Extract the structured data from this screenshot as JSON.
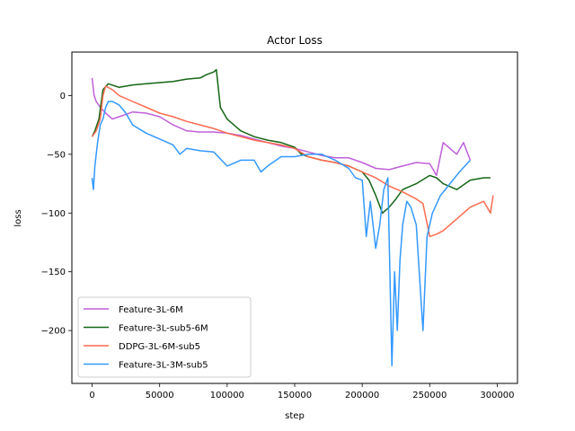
{
  "chart_data": {
    "type": "line",
    "title": "Actor Loss",
    "xlabel": "step",
    "ylabel": "loss",
    "xlim": [
      -15000,
      315000
    ],
    "ylim": [
      -245,
      37
    ],
    "xticks": [
      0,
      50000,
      100000,
      150000,
      200000,
      250000,
      300000
    ],
    "xtick_labels": [
      "0",
      "50000",
      "100000",
      "150000",
      "200000",
      "250000",
      "300000"
    ],
    "yticks": [
      0,
      -50,
      -100,
      -150,
      -200
    ],
    "ytick_labels": [
      "0",
      "−50",
      "−100",
      "−150",
      "−200"
    ],
    "grid": false,
    "legend_position": "lower-left",
    "series": [
      {
        "name": "Feature-3L-6M",
        "color": "#bf5fd9",
        "x": [
          0,
          1500,
          3000,
          6000,
          10000,
          15000,
          20000,
          25000,
          30000,
          40000,
          50000,
          60000,
          70000,
          80000,
          90000,
          100000,
          110000,
          120000,
          130000,
          140000,
          150000,
          160000,
          170000,
          180000,
          190000,
          200000,
          210000,
          220000,
          230000,
          240000,
          250000,
          255000,
          260000,
          265000,
          270000,
          275000,
          280000
        ],
        "y": [
          15,
          0,
          -5,
          -10,
          -15,
          -20,
          -18,
          -16,
          -14,
          -15,
          -18,
          -25,
          -30,
          -31,
          -31,
          -32,
          -34,
          -37,
          -40,
          -43,
          -45,
          -48,
          -51,
          -53,
          -53,
          -57,
          -62,
          -63,
          -60,
          -57,
          -58,
          -68,
          -40,
          -45,
          -50,
          -40,
          -55
        ]
      },
      {
        "name": "Feature-3L-sub5-6M",
        "color": "#146614",
        "x": [
          0,
          2000,
          5000,
          8000,
          12000,
          20000,
          30000,
          40000,
          50000,
          60000,
          70000,
          80000,
          85000,
          90000,
          92000,
          95000,
          100000,
          110000,
          120000,
          130000,
          140000,
          150000,
          155000,
          160000,
          170000,
          180000,
          190000,
          200000,
          205000,
          210000,
          215000,
          220000,
          225000,
          230000,
          240000,
          250000,
          255000,
          260000,
          270000,
          280000,
          290000,
          295000
        ],
        "y": [
          -35,
          -30,
          -20,
          5,
          10,
          7,
          9,
          10,
          11,
          12,
          14,
          15,
          18,
          20,
          22,
          -10,
          -20,
          -30,
          -35,
          -38,
          -40,
          -44,
          -50,
          -52,
          -55,
          -57,
          -60,
          -65,
          -72,
          -85,
          -100,
          -95,
          -88,
          -80,
          -75,
          -68,
          -70,
          -75,
          -80,
          -72,
          -70,
          -70
        ]
      },
      {
        "name": "DDPG-3L-6M-sub5",
        "color": "#ff6b50",
        "x": [
          0,
          3000,
          6000,
          8000,
          10000,
          15000,
          20000,
          30000,
          40000,
          50000,
          60000,
          70000,
          80000,
          90000,
          100000,
          110000,
          120000,
          130000,
          140000,
          150000,
          160000,
          170000,
          180000,
          190000,
          200000,
          210000,
          220000,
          230000,
          240000,
          245000,
          250000,
          255000,
          260000,
          270000,
          280000,
          290000,
          295000,
          297000
        ],
        "y": [
          -35,
          -30,
          -20,
          0,
          8,
          5,
          0,
          -5,
          -10,
          -15,
          -18,
          -22,
          -25,
          -28,
          -32,
          -35,
          -38,
          -40,
          -42,
          -45,
          -52,
          -55,
          -57,
          -60,
          -65,
          -70,
          -77,
          -82,
          -88,
          -92,
          -120,
          -118,
          -115,
          -105,
          -95,
          -90,
          -100,
          -85
        ]
      },
      {
        "name": "Feature-3L-3M-sub5",
        "color": "#3399ff",
        "x": [
          0,
          1000,
          2000,
          4000,
          6000,
          8000,
          10000,
          12000,
          15000,
          20000,
          25000,
          30000,
          40000,
          50000,
          60000,
          65000,
          70000,
          80000,
          90000,
          100000,
          110000,
          120000,
          125000,
          130000,
          140000,
          150000,
          160000,
          170000,
          180000,
          190000,
          195000,
          200000,
          203000,
          206000,
          210000,
          213000,
          216000,
          219000,
          222000,
          224000,
          226000,
          228000,
          230000,
          233000,
          236000,
          240000,
          245000,
          248000,
          252000,
          258000,
          265000,
          272000,
          280000
        ],
        "y": [
          -70,
          -80,
          -60,
          -40,
          -25,
          -20,
          -10,
          -5,
          -5,
          -8,
          -15,
          -25,
          -32,
          -37,
          -42,
          -50,
          -45,
          -47,
          -48,
          -60,
          -55,
          -55,
          -65,
          -60,
          -52,
          -52,
          -50,
          -50,
          -55,
          -62,
          -70,
          -72,
          -120,
          -90,
          -130,
          -110,
          -80,
          -70,
          -230,
          -150,
          -200,
          -140,
          -110,
          -90,
          -95,
          -110,
          -200,
          -120,
          -100,
          -85,
          -75,
          -65,
          -55
        ]
      }
    ]
  }
}
